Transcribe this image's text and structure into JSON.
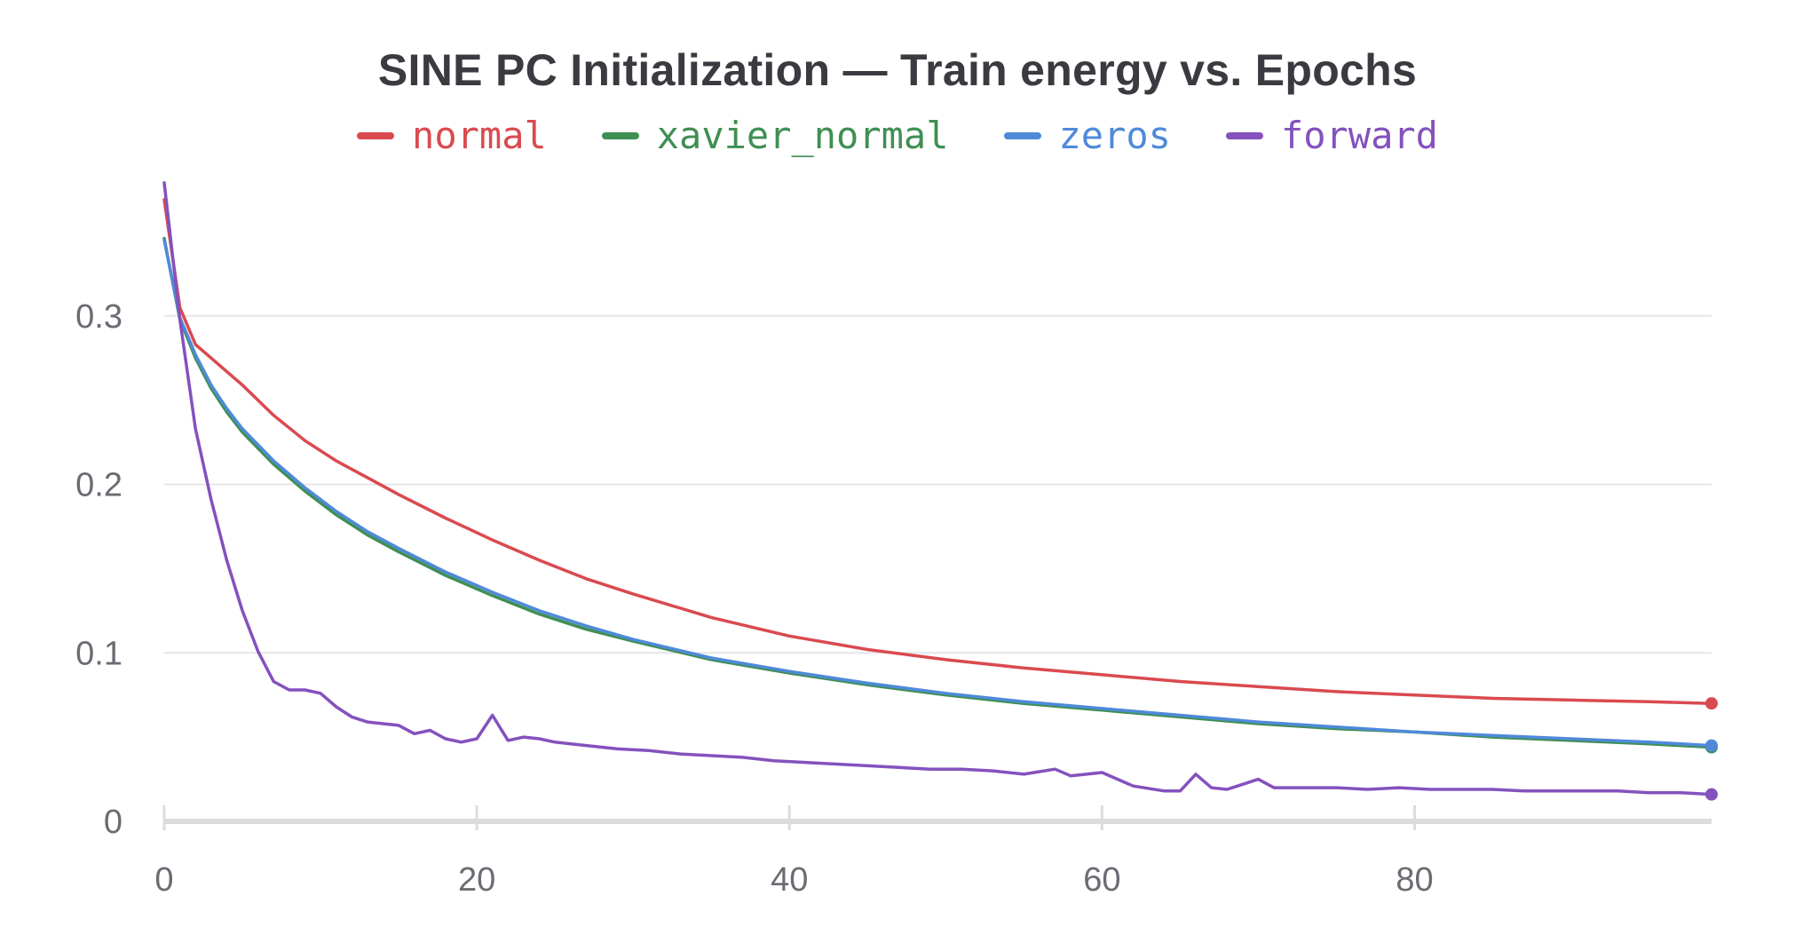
{
  "chart_data": {
    "type": "line",
    "title": "SINE PC Initialization — Train energy vs. Epochs",
    "xlabel": "",
    "ylabel": "",
    "xlim": [
      0,
      99
    ],
    "ylim": [
      0,
      0.38
    ],
    "x_ticks": [
      0,
      20,
      40,
      60,
      80
    ],
    "x_tick_labels": [
      "0",
      "20",
      "40",
      "60",
      "80"
    ],
    "y_ticks": [
      0,
      0.1,
      0.2,
      0.3
    ],
    "y_tick_labels": [
      "0",
      "0.1",
      "0.2",
      "0.3"
    ],
    "grid": "horizontal",
    "legend_position": "top",
    "series": [
      {
        "name": "normal",
        "color": "#d94a4f",
        "x": [
          0,
          1,
          2,
          3,
          5,
          7,
          9,
          11,
          13,
          15,
          18,
          21,
          24,
          27,
          30,
          35,
          40,
          45,
          50,
          55,
          60,
          65,
          70,
          75,
          80,
          85,
          90,
          95,
          99
        ],
        "y": [
          0.369,
          0.305,
          0.283,
          0.275,
          0.259,
          0.241,
          0.226,
          0.214,
          0.204,
          0.194,
          0.18,
          0.167,
          0.155,
          0.144,
          0.135,
          0.121,
          0.11,
          0.102,
          0.096,
          0.091,
          0.087,
          0.083,
          0.08,
          0.077,
          0.075,
          0.073,
          0.072,
          0.071,
          0.07
        ]
      },
      {
        "name": "xavier_normal",
        "color": "#3f8f53",
        "x": [
          0,
          1,
          2,
          3,
          4,
          5,
          7,
          9,
          11,
          13,
          15,
          18,
          21,
          24,
          27,
          30,
          35,
          40,
          45,
          50,
          55,
          60,
          65,
          70,
          75,
          80,
          85,
          90,
          95,
          99
        ],
        "y": [
          0.346,
          0.298,
          0.275,
          0.257,
          0.243,
          0.231,
          0.212,
          0.196,
          0.182,
          0.17,
          0.16,
          0.146,
          0.134,
          0.123,
          0.114,
          0.107,
          0.096,
          0.088,
          0.081,
          0.075,
          0.07,
          0.066,
          0.062,
          0.058,
          0.055,
          0.053,
          0.05,
          0.048,
          0.046,
          0.044
        ]
      },
      {
        "name": "zeros",
        "color": "#4f8ad9",
        "x": [
          0,
          1,
          2,
          3,
          4,
          5,
          7,
          9,
          11,
          13,
          15,
          18,
          21,
          24,
          27,
          30,
          35,
          40,
          45,
          50,
          55,
          60,
          65,
          70,
          75,
          80,
          85,
          90,
          95,
          99
        ],
        "y": [
          0.345,
          0.299,
          0.277,
          0.259,
          0.245,
          0.233,
          0.214,
          0.198,
          0.184,
          0.172,
          0.162,
          0.148,
          0.136,
          0.125,
          0.116,
          0.108,
          0.097,
          0.089,
          0.082,
          0.076,
          0.071,
          0.067,
          0.063,
          0.059,
          0.056,
          0.053,
          0.051,
          0.049,
          0.047,
          0.045
        ]
      },
      {
        "name": "forward",
        "color": "#8451bd",
        "x": [
          0,
          1,
          2,
          3,
          4,
          5,
          6,
          7,
          8,
          9,
          10,
          11,
          12,
          13,
          14,
          15,
          16,
          17,
          18,
          19,
          20,
          21,
          22,
          23,
          24,
          25,
          27,
          29,
          31,
          33,
          35,
          37,
          39,
          41,
          43,
          45,
          47,
          49,
          51,
          53,
          55,
          57,
          58,
          60,
          62,
          64,
          65,
          66,
          67,
          68,
          69,
          70,
          71,
          73,
          75,
          77,
          79,
          81,
          83,
          85,
          87,
          89,
          91,
          93,
          95,
          97,
          99
        ],
        "y": [
          0.379,
          0.298,
          0.233,
          0.191,
          0.155,
          0.125,
          0.101,
          0.083,
          0.078,
          0.078,
          0.076,
          0.068,
          0.062,
          0.059,
          0.058,
          0.057,
          0.052,
          0.054,
          0.049,
          0.047,
          0.049,
          0.063,
          0.048,
          0.05,
          0.049,
          0.047,
          0.045,
          0.043,
          0.042,
          0.04,
          0.039,
          0.038,
          0.036,
          0.035,
          0.034,
          0.033,
          0.032,
          0.031,
          0.031,
          0.03,
          0.028,
          0.031,
          0.027,
          0.029,
          0.021,
          0.018,
          0.018,
          0.028,
          0.02,
          0.019,
          0.022,
          0.025,
          0.02,
          0.02,
          0.02,
          0.019,
          0.02,
          0.019,
          0.019,
          0.019,
          0.018,
          0.018,
          0.018,
          0.018,
          0.017,
          0.017,
          0.016
        ]
      }
    ]
  }
}
